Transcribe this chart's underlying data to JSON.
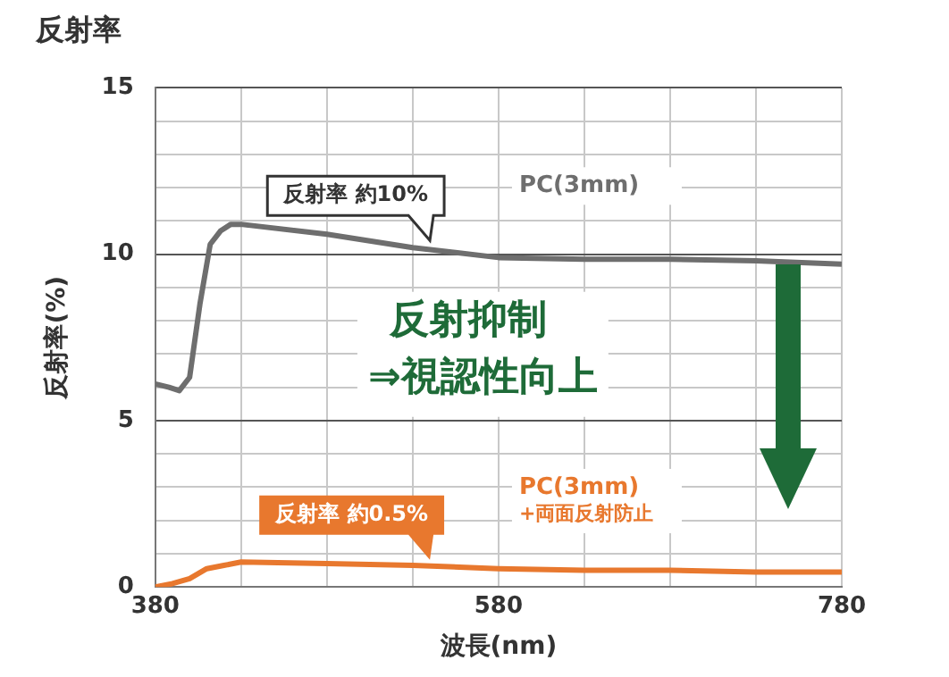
{
  "chart_data": {
    "type": "line",
    "title": "反射率",
    "xlabel": "波長(nm)",
    "ylabel": "反射率(%)",
    "xlim": [
      380,
      780
    ],
    "xticks": [
      380,
      {
        "value": 430,
        "label": null
      },
      {
        "value": 480,
        "label": null
      },
      {
        "value": 530,
        "label": null
      },
      580,
      {
        "value": 630,
        "label": null
      },
      {
        "value": 680,
        "label": null
      },
      {
        "value": 730,
        "label": null
      },
      780
    ],
    "ylim": [
      0,
      15
    ],
    "yticks": [
      0,
      {
        "value": 1,
        "label": null
      },
      {
        "value": 2,
        "label": null
      },
      {
        "value": 3,
        "label": null
      },
      {
        "value": 4,
        "label": null
      },
      5,
      {
        "value": 6,
        "label": null
      },
      {
        "value": 7,
        "label": null
      },
      {
        "value": 8,
        "label": null
      },
      {
        "value": 9,
        "label": null
      },
      10,
      {
        "value": 11,
        "label": null
      },
      {
        "value": 12,
        "label": null
      },
      {
        "value": 13,
        "label": null
      },
      {
        "value": 14,
        "label": null
      },
      15
    ],
    "grid": true,
    "legend": false,
    "marker": "none",
    "line_style": "solid",
    "series": [
      {
        "name": "PC(3mm)",
        "color": "#6e6e6e",
        "x": [
          380,
          388,
          394,
          400,
          406,
          412,
          418,
          424,
          430,
          480,
          530,
          580,
          630,
          680,
          730,
          780
        ],
        "values": [
          6.1,
          6.0,
          5.9,
          6.3,
          8.5,
          10.3,
          10.7,
          10.9,
          10.9,
          10.6,
          10.2,
          9.9,
          9.85,
          9.85,
          9.8,
          9.7
        ]
      },
      {
        "name": "PC(3mm)\n+両面反射防止",
        "color": "#e8782e",
        "x": [
          380,
          390,
          400,
          410,
          420,
          430,
          480,
          530,
          580,
          630,
          680,
          730,
          780
        ],
        "values": [
          0.0,
          0.1,
          0.25,
          0.55,
          0.65,
          0.75,
          0.7,
          0.65,
          0.55,
          0.5,
          0.5,
          0.45,
          0.45
        ]
      }
    ],
    "annotations": [
      {
        "text": "反射率 約10%",
        "x": 540,
        "y": 10.2
      },
      {
        "text": "反射率 約0.5%",
        "x": 540,
        "y": 0.6
      },
      "反射抑制\n⇒視認性向上"
    ]
  }
}
